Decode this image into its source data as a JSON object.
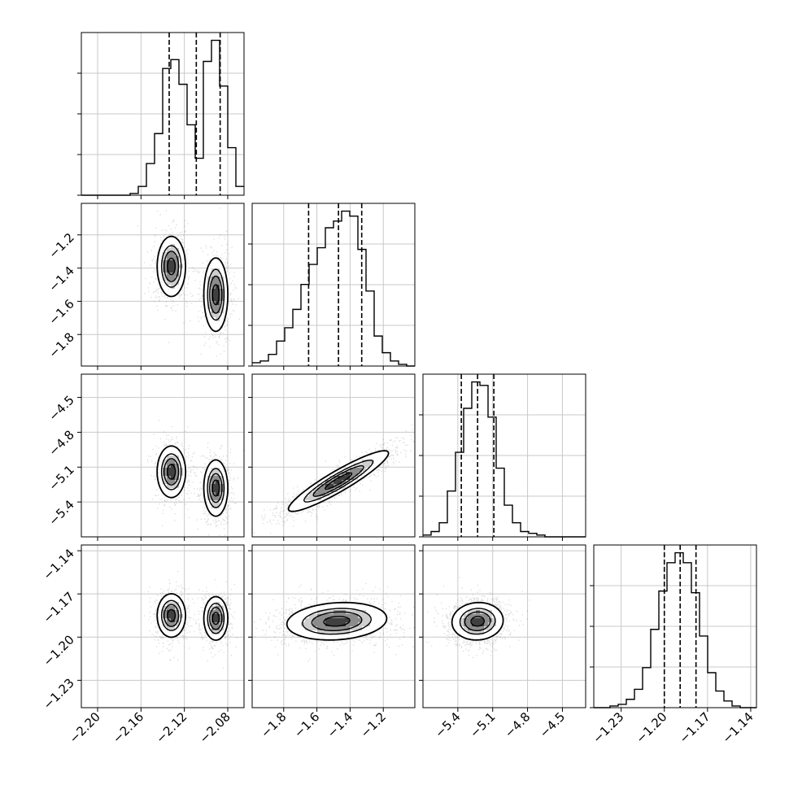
{
  "chart_data": {
    "type": "corner",
    "n_params": 4,
    "grid": true,
    "params": [
      {
        "range": [
          -2.215,
          -2.065
        ],
        "ticks": [
          -2.2,
          -2.16,
          -2.12,
          -2.08
        ],
        "tick_labels": [
          "−2.20",
          "−2.16",
          "−2.12",
          "−2.08"
        ],
        "quantiles": [
          -2.134,
          -2.109,
          -2.087
        ]
      },
      {
        "range": [
          -1.99,
          -1.01
        ],
        "ticks": [
          -1.8,
          -1.6,
          -1.4,
          -1.2
        ],
        "tick_labels": [
          "−1.8",
          "−1.6",
          "−1.4",
          "−1.2"
        ],
        "quantiles": [
          -1.65,
          -1.47,
          -1.33
        ]
      },
      {
        "range": [
          -5.7,
          -4.3
        ],
        "ticks": [
          -5.4,
          -5.1,
          -4.8,
          -4.5
        ],
        "tick_labels": [
          "−5.4",
          "−5.1",
          "−4.8",
          "−4.5"
        ],
        "quantiles": [
          -5.37,
          -5.23,
          -5.09
        ]
      },
      {
        "range": [
          -1.249,
          -1.136
        ],
        "ticks": [
          -1.23,
          -1.2,
          -1.17,
          -1.14
        ],
        "tick_labels": [
          "−1.23",
          "−1.20",
          "−1.17",
          "−1.14"
        ],
        "quantiles": [
          -1.2,
          -1.189,
          -1.178
        ]
      }
    ],
    "histograms": [
      {
        "param": 0,
        "bins": [
          -2.215,
          -2.2075,
          -2.2,
          -2.1925,
          -2.185,
          -2.1775,
          -2.17,
          -2.1625,
          -2.155,
          -2.1475,
          -2.14,
          -2.1325,
          -2.125,
          -2.1175,
          -2.11,
          -2.1025,
          -2.095,
          -2.0875,
          -2.08,
          -2.0725,
          -2.065
        ],
        "counts": [
          0,
          0,
          0,
          0,
          0,
          0,
          1,
          5,
          18,
          35,
          72,
          77,
          63,
          40,
          21,
          76,
          88,
          62,
          27,
          5
        ]
      },
      {
        "param": 1,
        "bins": [
          -1.99,
          -1.941,
          -1.892,
          -1.843,
          -1.794,
          -1.745,
          -1.696,
          -1.647,
          -1.598,
          -1.549,
          -1.5,
          -1.451,
          -1.402,
          -1.353,
          -1.304,
          -1.255,
          -1.206,
          -1.157,
          -1.108,
          -1.059,
          -1.01
        ],
        "counts": [
          2,
          3,
          7,
          15,
          23,
          34,
          49,
          61,
          71,
          83,
          87,
          93,
          90,
          70,
          45,
          18,
          8,
          3,
          1,
          0
        ]
      },
      {
        "param": 2,
        "bins": [
          -5.7,
          -5.63,
          -5.56,
          -5.49,
          -5.42,
          -5.35,
          -5.28,
          -5.21,
          -5.14,
          -5.07,
          -5.0,
          -4.93,
          -4.86,
          -4.79,
          -4.72,
          -4.65,
          -4.58,
          -4.51,
          -4.44,
          -4.37,
          -4.3
        ],
        "counts": [
          1,
          3,
          8,
          26,
          48,
          73,
          88,
          86,
          68,
          39,
          18,
          8,
          3,
          2,
          1,
          0,
          0,
          0,
          0,
          0
        ]
      },
      {
        "param": 3,
        "bins": [
          -1.249,
          -1.24335,
          -1.2377,
          -1.23205,
          -1.2264,
          -1.22075,
          -1.2151,
          -1.20945,
          -1.2038,
          -1.19815,
          -1.1925,
          -1.18685,
          -1.1812,
          -1.17555,
          -1.1699,
          -1.16425,
          -1.1586,
          -1.15295,
          -1.1473,
          -1.14165,
          -1.136
        ],
        "counts": [
          0,
          0,
          1,
          2,
          5,
          11,
          24,
          47,
          70,
          87,
          93,
          87,
          69,
          43,
          21,
          10,
          4,
          1,
          0,
          0
        ]
      }
    ],
    "joint": [
      {
        "x": 0,
        "y": 1,
        "modes": [
          {
            "mx": -2.132,
            "my": -1.39,
            "sx": 0.0065,
            "sy": 0.09,
            "rho": 0.0,
            "w": 0.5
          },
          {
            "mx": -2.091,
            "my": -1.56,
            "sx": 0.0055,
            "sy": 0.11,
            "rho": 0.0,
            "w": 0.5
          }
        ]
      },
      {
        "x": 0,
        "y": 2,
        "modes": [
          {
            "mx": -2.132,
            "my": -5.14,
            "sx": 0.0065,
            "sy": 0.11,
            "rho": 0.0,
            "w": 0.5
          },
          {
            "mx": -2.091,
            "my": -5.28,
            "sx": 0.0055,
            "sy": 0.12,
            "rho": 0.0,
            "w": 0.5
          }
        ]
      },
      {
        "x": 0,
        "y": 3,
        "modes": [
          {
            "mx": -2.132,
            "my": -1.185,
            "sx": 0.0065,
            "sy": 0.0075,
            "rho": 0.0,
            "w": 0.5
          },
          {
            "mx": -2.091,
            "my": -1.187,
            "sx": 0.0055,
            "sy": 0.0075,
            "rho": 0.0,
            "w": 0.5
          }
        ]
      },
      {
        "x": 1,
        "y": 2,
        "modes": [
          {
            "mx": -1.47,
            "my": -5.22,
            "sx": 0.15,
            "sy": 0.13,
            "rho": 0.92,
            "w": 1.0
          }
        ]
      },
      {
        "x": 1,
        "y": 3,
        "modes": [
          {
            "mx": -1.48,
            "my": -1.189,
            "sx": 0.15,
            "sy": 0.0065,
            "rho": 0.15,
            "w": 1.0
          }
        ]
      },
      {
        "x": 2,
        "y": 3,
        "modes": [
          {
            "mx": -5.23,
            "my": -1.189,
            "sx": 0.11,
            "sy": 0.0065,
            "rho": 0.05,
            "w": 1.0
          }
        ]
      }
    ]
  }
}
